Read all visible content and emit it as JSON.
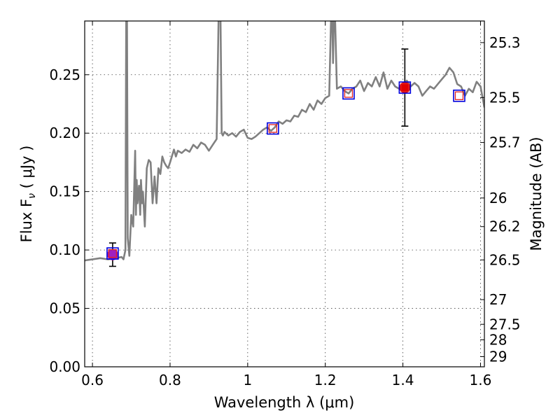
{
  "chart_data": {
    "type": "line",
    "xlabel": "Wavelength  λ (μm)",
    "ylabel": "Flux  F",
    "ylabel_sub": "ν",
    "ylabel_unit": " ( μJy )",
    "y2label": "Magnitude (AB)",
    "xlim": [
      0.58,
      1.61
    ],
    "ylim": [
      0.0,
      0.296
    ],
    "grid": true,
    "x_ticks": [
      0.6,
      0.8,
      1.0,
      1.2,
      1.4,
      1.6
    ],
    "x_tick_labels": [
      "0.6",
      "0.8",
      "1",
      "1.2",
      "1.4",
      "1.6"
    ],
    "y_ticks": [
      0.0,
      0.05,
      0.1,
      0.15,
      0.2,
      0.25
    ],
    "y_tick_labels": [
      "0.00",
      "0.05",
      "0.10",
      "0.15",
      "0.20",
      "0.25"
    ],
    "y2_tick_values_flux": [
      0.2775,
      0.2305,
      0.192,
      0.1445,
      0.12,
      0.0915,
      0.0575,
      0.0364,
      0.0231,
      0.0087
    ],
    "y2_tick_labels": [
      "25.3",
      "25.5",
      "25.7",
      "26",
      "26.2",
      "26.5",
      "27",
      "27.5",
      "28",
      "29"
    ],
    "series": [
      {
        "color": "#808080",
        "x": [
          0.58,
          0.6,
          0.62,
          0.64,
          0.66,
          0.675,
          0.68,
          0.685,
          0.687,
          0.689,
          0.691,
          0.695,
          0.7,
          0.705,
          0.71,
          0.712,
          0.714,
          0.716,
          0.72,
          0.723,
          0.725,
          0.728,
          0.73,
          0.735,
          0.74,
          0.745,
          0.75,
          0.755,
          0.76,
          0.765,
          0.77,
          0.775,
          0.78,
          0.785,
          0.79,
          0.795,
          0.8,
          0.81,
          0.815,
          0.82,
          0.83,
          0.84,
          0.85,
          0.86,
          0.87,
          0.88,
          0.89,
          0.9,
          0.91,
          0.92,
          0.925,
          0.928,
          0.93,
          0.933,
          0.936,
          0.94,
          0.95,
          0.96,
          0.97,
          0.98,
          0.99,
          1.0,
          1.01,
          1.02,
          1.03,
          1.04,
          1.05,
          1.06,
          1.07,
          1.08,
          1.09,
          1.1,
          1.11,
          1.12,
          1.13,
          1.14,
          1.15,
          1.16,
          1.17,
          1.18,
          1.19,
          1.2,
          1.21,
          1.215,
          1.218,
          1.22,
          1.222,
          1.225,
          1.23,
          1.24,
          1.25,
          1.26,
          1.27,
          1.28,
          1.29,
          1.3,
          1.31,
          1.32,
          1.33,
          1.34,
          1.35,
          1.36,
          1.37,
          1.38,
          1.39,
          1.4,
          1.41,
          1.42,
          1.43,
          1.44,
          1.45,
          1.46,
          1.47,
          1.48,
          1.49,
          1.5,
          1.51,
          1.52,
          1.53,
          1.54,
          1.55,
          1.56,
          1.57,
          1.58,
          1.59,
          1.6,
          1.61
        ],
        "y": [
          0.091,
          0.092,
          0.093,
          0.092,
          0.093,
          0.094,
          0.092,
          0.1,
          0.3,
          0.3,
          0.11,
          0.095,
          0.13,
          0.12,
          0.185,
          0.13,
          0.16,
          0.14,
          0.155,
          0.13,
          0.16,
          0.14,
          0.15,
          0.12,
          0.17,
          0.177,
          0.175,
          0.14,
          0.163,
          0.14,
          0.17,
          0.165,
          0.18,
          0.175,
          0.172,
          0.17,
          0.175,
          0.186,
          0.18,
          0.185,
          0.183,
          0.186,
          0.184,
          0.19,
          0.187,
          0.192,
          0.19,
          0.185,
          0.19,
          0.195,
          0.3,
          0.3,
          0.3,
          0.2,
          0.198,
          0.201,
          0.198,
          0.2,
          0.197,
          0.201,
          0.203,
          0.196,
          0.195,
          0.197,
          0.2,
          0.203,
          0.205,
          0.202,
          0.205,
          0.21,
          0.208,
          0.211,
          0.21,
          0.215,
          0.214,
          0.22,
          0.218,
          0.225,
          0.22,
          0.228,
          0.225,
          0.23,
          0.232,
          0.3,
          0.3,
          0.26,
          0.3,
          0.3,
          0.238,
          0.24,
          0.236,
          0.234,
          0.238,
          0.24,
          0.245,
          0.236,
          0.243,
          0.24,
          0.248,
          0.24,
          0.252,
          0.238,
          0.245,
          0.24,
          0.238,
          0.236,
          0.245,
          0.24,
          0.243,
          0.24,
          0.232,
          0.236,
          0.24,
          0.238,
          0.242,
          0.246,
          0.25,
          0.256,
          0.252,
          0.242,
          0.24,
          0.232,
          0.238,
          0.235,
          0.244,
          0.24,
          0.222
        ]
      }
    ],
    "photometry": [
      {
        "x": 0.652,
        "y": 0.096,
        "yerr": 0.01,
        "filled": true,
        "color": "#a020c0"
      },
      {
        "x": 1.405,
        "y": 0.239,
        "yerr": 0.033,
        "filled": true,
        "color": "#e00000"
      }
    ],
    "model_points": [
      {
        "x": 0.652,
        "y": 0.097
      },
      {
        "x": 1.065,
        "y": 0.204
      },
      {
        "x": 1.26,
        "y": 0.234
      },
      {
        "x": 1.405,
        "y": 0.239
      },
      {
        "x": 1.545,
        "y": 0.232
      }
    ]
  }
}
